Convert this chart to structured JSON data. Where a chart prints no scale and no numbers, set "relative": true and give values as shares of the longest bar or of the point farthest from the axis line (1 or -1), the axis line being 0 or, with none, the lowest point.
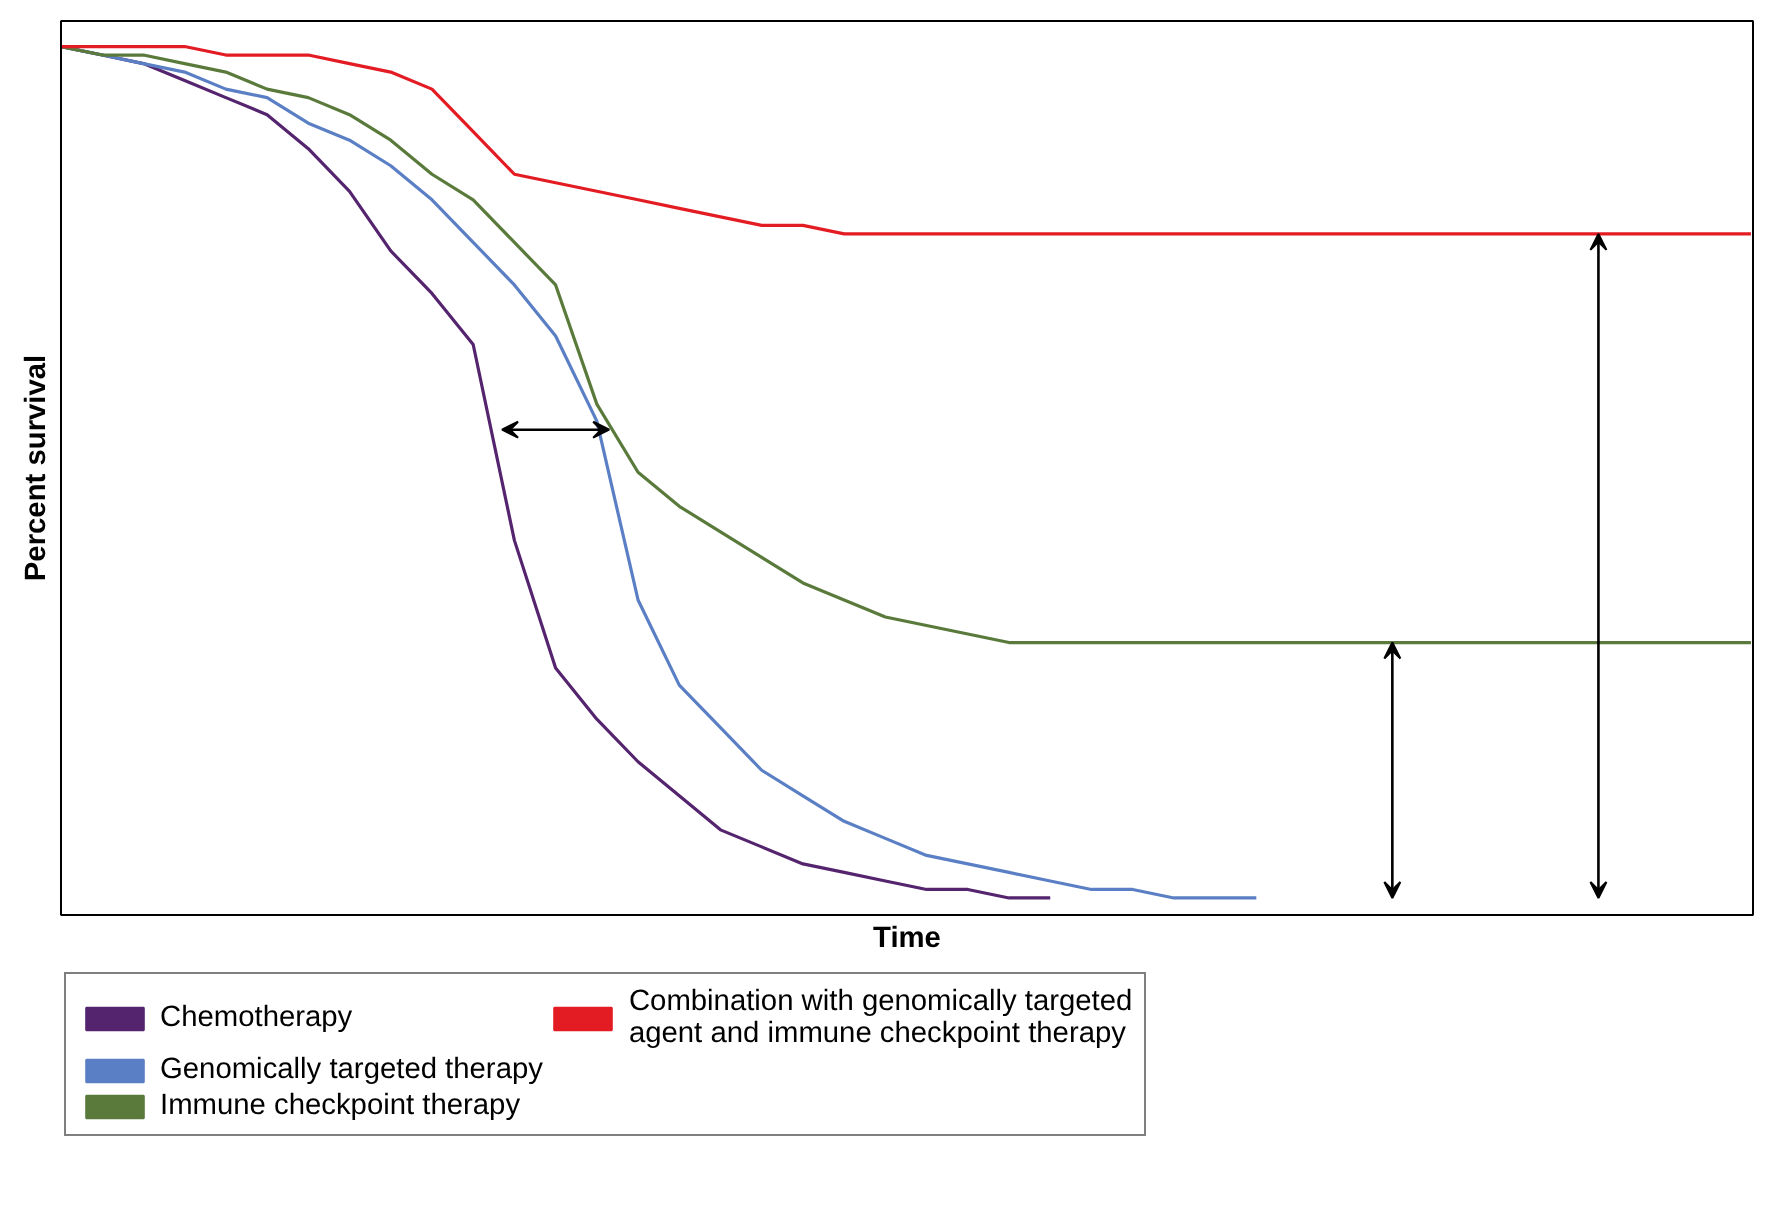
{
  "chart_data": {
    "type": "line",
    "relative": true,
    "xlabel": "Time",
    "ylabel": "Percent survival",
    "legend": "bottom",
    "line_style": "solid",
    "categories": [
      null,
      null,
      null,
      null,
      null,
      null,
      null,
      null,
      null,
      null,
      null,
      null,
      null,
      null,
      null,
      null,
      null,
      null,
      null,
      null,
      null,
      null,
      null,
      null,
      null,
      null,
      null,
      null,
      null,
      null,
      null,
      null,
      null,
      null,
      null,
      null,
      null,
      null,
      null,
      null,
      null,
      null
    ],
    "series": [
      {
        "name": "Chemotherapy",
        "color": "#55246e",
        "values": [
          1.0,
          0.99,
          0.98,
          0.96,
          0.94,
          0.92,
          0.88,
          0.83,
          0.76,
          0.71,
          0.65,
          0.42,
          0.27,
          0.21,
          0.16,
          0.12,
          0.08,
          0.06,
          0.04,
          0.03,
          0.02,
          0.01,
          0.01,
          0,
          0,
          null,
          null,
          null,
          null,
          null,
          null,
          null,
          null,
          null,
          null,
          null,
          null,
          null,
          null,
          null,
          null,
          null
        ]
      },
      {
        "name": "Genomically targeted therapy",
        "color": "#5b7fc4",
        "values": [
          1.0,
          0.99,
          0.98,
          0.97,
          0.95,
          0.94,
          0.91,
          0.89,
          0.86,
          0.82,
          0.77,
          0.72,
          0.66,
          0.56,
          0.35,
          0.25,
          0.2,
          0.15,
          0.12,
          0.09,
          0.07,
          0.05,
          0.04,
          0.03,
          0.02,
          0.01,
          0.01,
          0,
          0,
          0,
          null,
          null,
          null,
          null,
          null,
          null,
          null,
          null,
          null,
          null,
          null,
          null
        ]
      },
      {
        "name": "Immune checkpoint therapy",
        "color": "#5a7a3c",
        "values": [
          1.0,
          0.99,
          0.99,
          0.98,
          0.97,
          0.95,
          0.94,
          0.92,
          0.89,
          0.85,
          0.82,
          0.77,
          0.72,
          0.58,
          0.5,
          0.46,
          0.43,
          0.4,
          0.37,
          0.35,
          0.33,
          0.32,
          0.31,
          0.3,
          0.3,
          0.3,
          0.3,
          0.3,
          0.3,
          0.3,
          0.3,
          0.3,
          0.3,
          0.3,
          0.3,
          0.3,
          0.3,
          0.3,
          0.3,
          0.3,
          0.3,
          0.3
        ]
      },
      {
        "name": "Combination with genomically targeted agent and immune checkpoint therapy",
        "color": "#e31c23",
        "values": [
          1.0,
          1.0,
          1.0,
          1.0,
          0.99,
          0.99,
          0.99,
          0.98,
          0.97,
          0.95,
          0.9,
          0.85,
          0.84,
          0.83,
          0.82,
          0.81,
          0.8,
          0.79,
          0.79,
          0.78,
          0.78,
          0.78,
          0.78,
          0.78,
          0.78,
          0.78,
          0.78,
          0.78,
          0.78,
          0.78,
          0.78,
          0.78,
          0.78,
          0.78,
          0.78,
          0.78,
          0.78,
          0.78,
          0.78,
          0.78,
          0.78,
          0.78
        ]
      }
    ]
  }
}
